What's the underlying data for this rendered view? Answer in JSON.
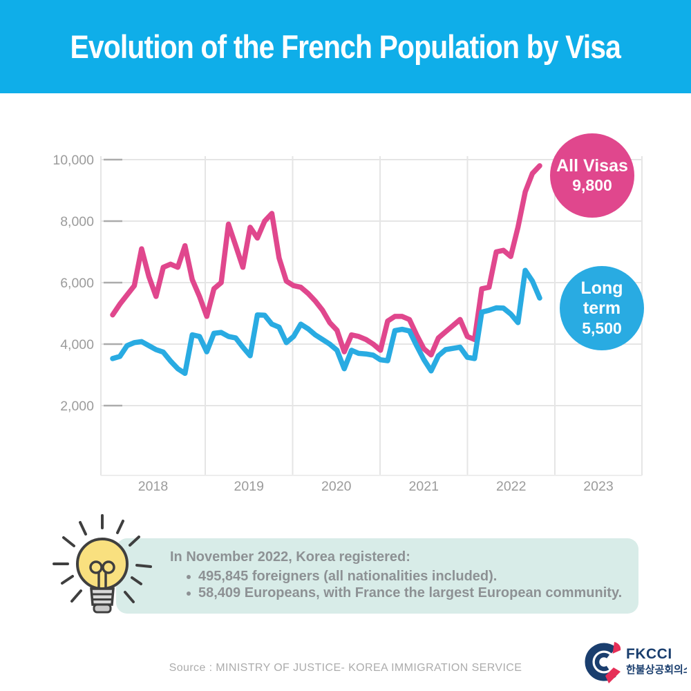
{
  "header": {
    "title": "Evolution of the French Population by Visa"
  },
  "colors": {
    "header_bg": "#0FAEE9",
    "all_visas_pink": "#E0478D",
    "long_term_blue": "#29ABE2",
    "gridline": "#E5E5E5",
    "axis_text": "#9B9B9B",
    "note_bg": "#D8ECE8",
    "note_text": "#8D9194",
    "navy": "#1A3E6E",
    "logo_red": "#E62F57"
  },
  "chart_data": {
    "type": "line",
    "title": "Evolution of the French Population by Visa",
    "x_unit": "month",
    "grid": true,
    "legend_position": "end-of-line-badges",
    "x_tick_labels": [
      "2018",
      "2019",
      "2020",
      "2021",
      "2022",
      "2023"
    ],
    "y_axis": {
      "ticks": [
        10000,
        8000,
        6000,
        4000,
        2000
      ],
      "tick_labels": [
        "10,000",
        "8,000",
        "6,000",
        "4,000",
        "2,000"
      ],
      "ylim": [
        2000,
        10000
      ]
    },
    "x": [
      "Dec 2017",
      "Jan 2018",
      "Feb 2018",
      "Mar 2018",
      "Apr 2018",
      "May 2018",
      "Jun 2018",
      "Jul 2018",
      "Aug 2018",
      "Sep 2018",
      "Oct 2018",
      "Nov 2018",
      "Dec 2018",
      "Jan 2019",
      "Feb 2019",
      "Mar 2019",
      "Apr 2019",
      "May 2019",
      "Jun 2019",
      "Jul 2019",
      "Aug 2019",
      "Sep 2019",
      "Oct 2019",
      "Nov 2019",
      "Dec 2019",
      "Jan 2020",
      "Feb 2020",
      "Mar 2020",
      "Apr 2020",
      "May 2020",
      "Jun 2020",
      "Jul 2020",
      "Aug 2020",
      "Sep 2020",
      "Oct 2020",
      "Nov 2020",
      "Dec 2020",
      "Jan 2021",
      "Feb 2021",
      "Mar 2021",
      "Apr 2021",
      "May 2021",
      "Jun 2021",
      "Jul 2021",
      "Aug 2021",
      "Sep 2021",
      "Oct 2021",
      "Nov 2021",
      "Dec 2021",
      "Jan 2022",
      "Feb 2022",
      "Mar 2022",
      "Apr 2022",
      "May 2022",
      "Jun 2022",
      "Jul 2022",
      "Aug 2022",
      "Sep 2022",
      "Oct 2022",
      "Nov 2022"
    ],
    "series": [
      {
        "name": "All Visas",
        "color": "#E0478D",
        "end_label": "All Visas",
        "end_value_label": "9,800",
        "end_value": 9800,
        "values": [
          4950,
          5300,
          5600,
          5900,
          7100,
          6200,
          5550,
          6500,
          6600,
          6500,
          7200,
          6100,
          5550,
          4900,
          5800,
          6000,
          7900,
          7200,
          6500,
          7800,
          7450,
          8000,
          8250,
          6800,
          6050,
          5900,
          5850,
          5650,
          5400,
          5100,
          4700,
          4450,
          3750,
          4300,
          4250,
          4150,
          4000,
          3800,
          4750,
          4900,
          4900,
          4800,
          4300,
          3850,
          3650,
          4200,
          4400,
          4600,
          4800,
          4250,
          4150,
          5800,
          5850,
          7000,
          7050,
          6850,
          7800,
          8950,
          9550,
          9800
        ]
      },
      {
        "name": "Long term",
        "color": "#29ABE2",
        "end_label": "Long term",
        "end_value_label": "5,500",
        "end_value": 5500,
        "values": [
          3530,
          3600,
          3950,
          4050,
          4080,
          3950,
          3820,
          3740,
          3450,
          3200,
          3050,
          4300,
          4250,
          3750,
          4350,
          4380,
          4250,
          4200,
          3900,
          3620,
          4950,
          4940,
          4650,
          4550,
          4050,
          4250,
          4650,
          4500,
          4300,
          4150,
          4000,
          3800,
          3200,
          3800,
          3700,
          3680,
          3640,
          3490,
          3460,
          4440,
          4480,
          4430,
          3950,
          3500,
          3130,
          3620,
          3820,
          3860,
          3900,
          3570,
          3530,
          5040,
          5100,
          5180,
          5170,
          4980,
          4700,
          6400,
          6050,
          5500
        ]
      }
    ]
  },
  "note": {
    "intro": "In November 2022, Korea registered:",
    "bullets": [
      "495,845 foreigners (all nationalities included).",
      "58,409 Europeans, with France the largest European community."
    ]
  },
  "footer": {
    "source": "Source : MINISTRY OF JUSTICE- KOREA IMMIGRATION SERVICE",
    "logo": {
      "name": "FKCCI",
      "korean": "한불상공회의소"
    }
  }
}
